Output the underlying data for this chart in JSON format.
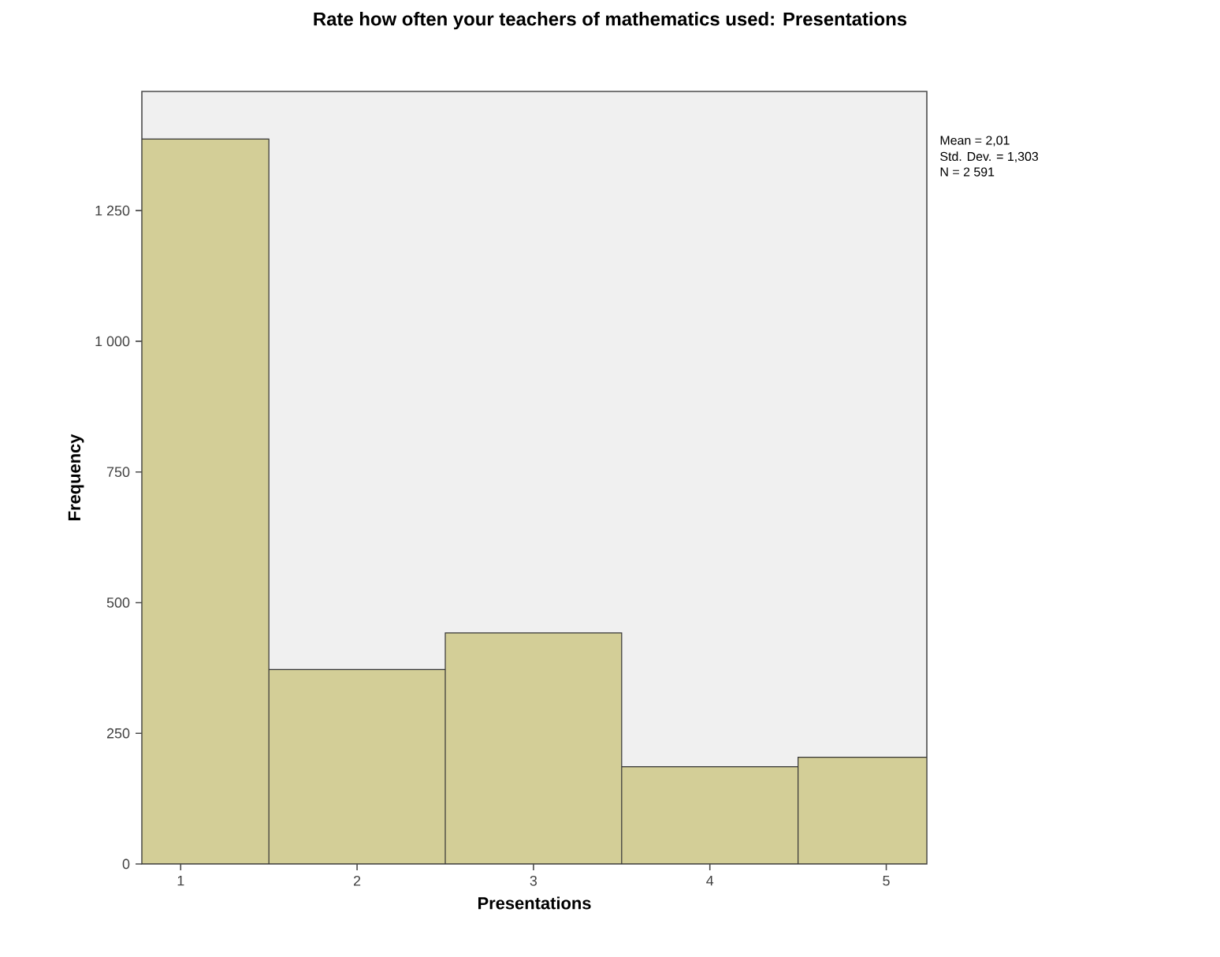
{
  "chart_data": {
    "type": "histogram",
    "title": "Rate how often your teachers of mathematics used: Presentations",
    "xlabel": "Presentations",
    "ylabel": "Frequency",
    "bins": [
      0.78,
      1.5,
      2.5,
      3.5,
      4.5,
      5.23
    ],
    "values": [
      1387,
      372,
      442,
      186,
      204
    ],
    "color": "#d3ce97",
    "xlim": [
      0.78,
      5.23
    ],
    "ylim": [
      0,
      1478
    ],
    "xticks": [
      1,
      2,
      3,
      4,
      5
    ],
    "yticks": [
      0,
      250,
      500,
      750,
      {
        "value": 1000,
        "label": "1 000"
      },
      {
        "value": 1250,
        "label": "1 250"
      }
    ],
    "annotations": [
      "Mean = 2,01",
      "Std. Dev. = 1,303",
      "N = 2 591"
    ],
    "grid": false
  }
}
